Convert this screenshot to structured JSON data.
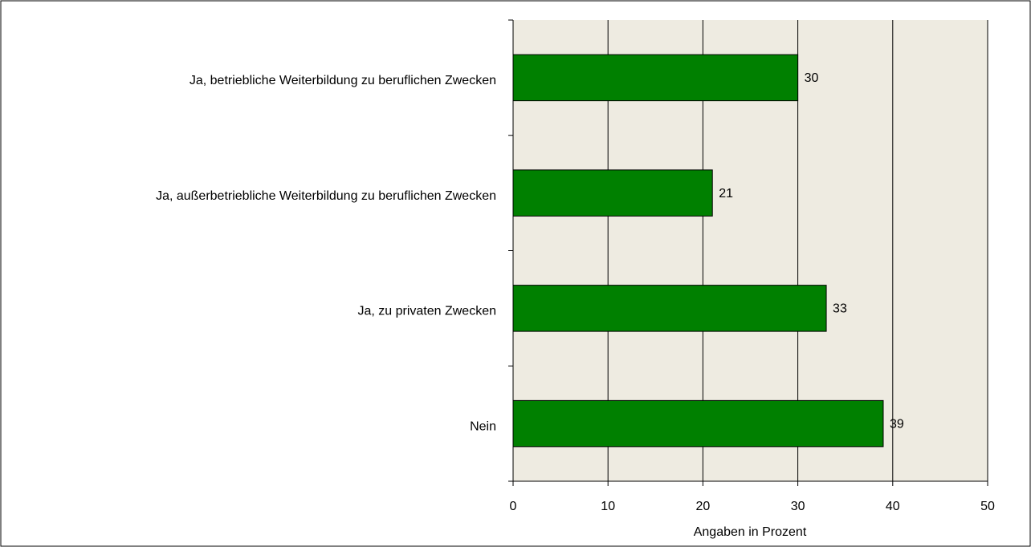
{
  "chart_data": {
    "type": "barh",
    "categories": [
      "Ja, betriebliche Weiterbildung zu beruflichen Zwecken",
      "Ja, außerbetriebliche Weiterbildung zu beruflichen Zwecken",
      "Ja, zu privaten Zwecken",
      "Nein"
    ],
    "values": [
      30,
      21,
      33,
      39
    ],
    "color": "#008000",
    "xlabel": "Angaben in Prozent",
    "xlim": [
      0,
      50
    ],
    "xticks": [
      0,
      10,
      20,
      30,
      40,
      50
    ],
    "grid": true
  }
}
